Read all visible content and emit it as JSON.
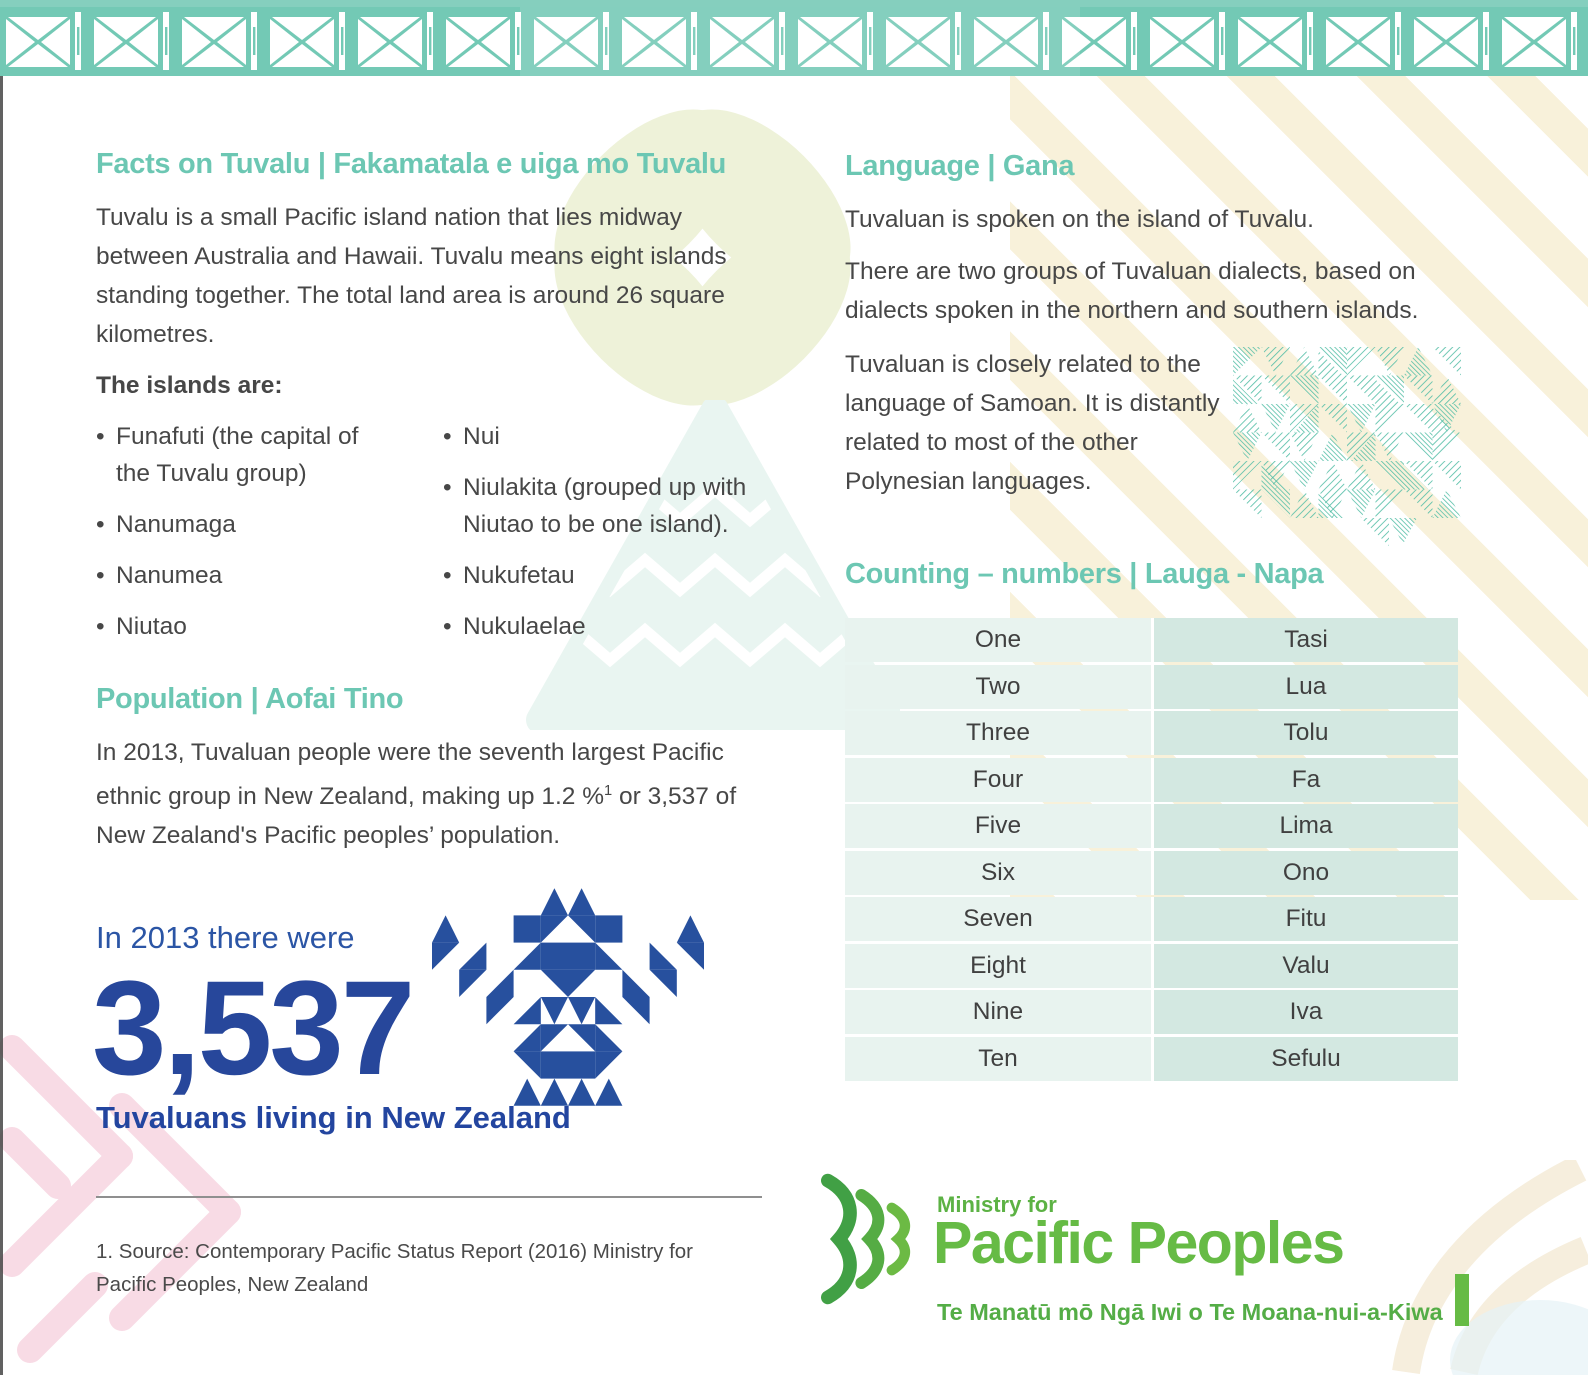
{
  "facts": {
    "heading": "Facts on Tuvalu | Fakamatala e uiga mo Tuvalu",
    "intro": "Tuvalu is a small Pacific island nation that lies midway between Australia and Hawaii. Tuvalu means eight islands standing together. The total land area is around 26 square kilometres.",
    "islands_label": "The islands are:",
    "islands_col1": [
      "Funafuti (the capital of the Tuvalu group)",
      "Nanumaga",
      "Nanumea",
      "Niutao"
    ],
    "islands_col2": [
      "Nui",
      "Niulakita (grouped up with Niutao to be one island).",
      "Nukufetau",
      "Nukulaelae"
    ]
  },
  "population": {
    "heading": "Population | Aofai Tino",
    "body_part1": "In 2013, Tuvaluan people were the seventh largest Pacific ethnic group in New Zealand, making up 1.2 %",
    "body_sup": "1",
    "body_part2": " or 3,537 of New Zealand's Pacific peoples’ population.",
    "stat_intro": "In 2013 there were",
    "stat_number": "3,537",
    "stat_caption": "Tuvaluans living in New Zealand",
    "footnote": "1. Source: Contemporary Pacific Status Report (2016) Ministry for Pacific Peoples, New Zealand"
  },
  "language": {
    "heading": "Language | Gana",
    "p1": "Tuvaluan is spoken on the island of Tuvalu.",
    "p2": "There are two groups of Tuvaluan dialects, based on dialects spoken in the northern and southern islands.",
    "p3": "Tuvaluan is closely related to the language of Samoan. It is distantly related to most of the other Polynesian languages."
  },
  "counting": {
    "heading": "Counting – numbers | Lauga - Napa",
    "rows": [
      {
        "en": "One",
        "tv": "Tasi"
      },
      {
        "en": "Two",
        "tv": "Lua"
      },
      {
        "en": "Three",
        "tv": "Tolu"
      },
      {
        "en": "Four",
        "tv": "Fa"
      },
      {
        "en": "Five",
        "tv": "Lima"
      },
      {
        "en": "Six",
        "tv": "Ono"
      },
      {
        "en": "Seven",
        "tv": "Fitu"
      },
      {
        "en": "Eight",
        "tv": "Valu"
      },
      {
        "en": "Nine",
        "tv": "Iva"
      },
      {
        "en": "Ten",
        "tv": "Sefulu"
      }
    ]
  },
  "logo": {
    "ministry_for": "Ministry for",
    "name": "Pacific Peoples",
    "maori": "Te Manatū mō Ngā Iwi o Te Moana-nui-a-Kiwa"
  },
  "colors": {
    "teal_heading": "#6cc7b3",
    "teal_border": "#73c9b5",
    "body_text": "#474747",
    "stat_blue": "#27479b",
    "table_left_bg": "#e8f3ef",
    "table_right_bg": "#d3e8e1",
    "logo_green": "#66bb45"
  }
}
